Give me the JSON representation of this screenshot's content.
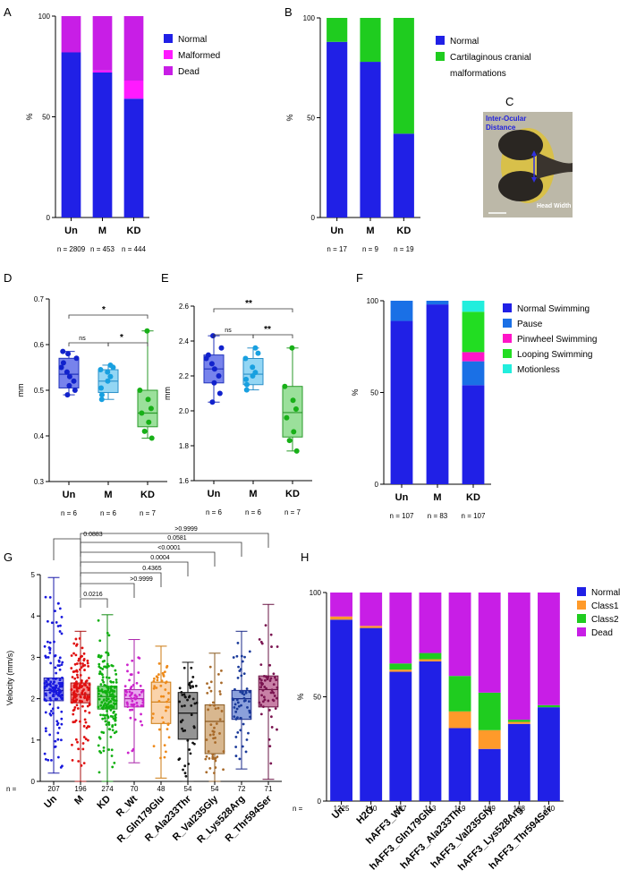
{
  "colors": {
    "blue": "#2020e6",
    "magenta": "#ff1aff",
    "purple": "#c81ee6",
    "green": "#1fcc1f",
    "pause": "#1a70e6",
    "pinwheel": "#ff14c8",
    "looping": "#22dd22",
    "motionless": "#22eedd",
    "orange": "#ff9a2a",
    "boxBlue": "#4a5ae6",
    "boxCyan": "#6fc8f0",
    "boxGreen": "#7ad67a"
  },
  "chart_data": [
    {
      "id": "A",
      "type": "bar",
      "label": "A",
      "ylabel": "%",
      "ylim": [
        0,
        100
      ],
      "yticks": [
        0,
        50,
        100
      ],
      "categories": [
        "Un",
        "M",
        "KD"
      ],
      "n_labels": [
        "n = 2809",
        "n = 453",
        "n = 444"
      ],
      "series": [
        {
          "name": "Normal",
          "values": [
            82,
            72,
            59
          ]
        },
        {
          "name": "Malformed",
          "values": [
            0,
            1,
            9
          ]
        },
        {
          "name": "Dead",
          "values": [
            18,
            27,
            32
          ]
        }
      ],
      "legend": [
        "Normal",
        "Malformed",
        "Dead"
      ]
    },
    {
      "id": "B",
      "type": "bar",
      "label": "B",
      "ylabel": "%",
      "ylim": [
        0,
        100
      ],
      "yticks": [
        0,
        50,
        100
      ],
      "categories": [
        "Un",
        "M",
        "KD"
      ],
      "n_labels": [
        "n = 17",
        "n = 9",
        "n = 19"
      ],
      "series": [
        {
          "name": "Normal",
          "values": [
            88,
            78,
            42
          ]
        },
        {
          "name": "Cartilaginous cranial malformations",
          "values": [
            12,
            22,
            58
          ]
        }
      ],
      "legend": [
        "Normal",
        "Cartilaginous cranial",
        "malformations"
      ]
    },
    {
      "id": "C",
      "type": "image",
      "label": "C",
      "annotations": [
        "Inter-Ocular",
        "Distance",
        "Head Width"
      ]
    },
    {
      "id": "D",
      "type": "box",
      "label": "D",
      "ylabel": "mm",
      "ylim": [
        0.3,
        0.7
      ],
      "yticks": [
        "0.3",
        "0.4",
        "0.5",
        "0.6",
        "0.7"
      ],
      "categories": [
        "Un",
        "M",
        "KD"
      ],
      "n_labels": [
        "n = 6",
        "n = 6",
        "n = 7"
      ],
      "boxes": [
        {
          "min": 0.49,
          "q1": 0.505,
          "median": 0.535,
          "q3": 0.57,
          "max": 0.585,
          "points": [
            0.49,
            0.5,
            0.51,
            0.52,
            0.53,
            0.54,
            0.55,
            0.56,
            0.57,
            0.58,
            0.585
          ]
        },
        {
          "min": 0.48,
          "q1": 0.495,
          "median": 0.52,
          "q3": 0.545,
          "max": 0.555,
          "points": [
            0.48,
            0.49,
            0.505,
            0.52,
            0.53,
            0.54,
            0.545,
            0.55,
            0.555
          ]
        },
        {
          "min": 0.395,
          "q1": 0.42,
          "median": 0.45,
          "q3": 0.5,
          "max": 0.63,
          "points": [
            0.395,
            0.41,
            0.43,
            0.45,
            0.46,
            0.48,
            0.5,
            0.63
          ]
        }
      ],
      "comparisons": [
        {
          "from": 0,
          "to": 2,
          "label": "*"
        },
        {
          "from": 0,
          "to": 1,
          "label": "ns"
        },
        {
          "from": 1,
          "to": 2,
          "label": "*"
        }
      ]
    },
    {
      "id": "E",
      "type": "box",
      "label": "E",
      "ylabel": "mm",
      "ylim": [
        1.6,
        2.6
      ],
      "yticks": [
        "1.6",
        "1.8",
        "2.0",
        "2.2",
        "2.4",
        "2.6"
      ],
      "categories": [
        "Un",
        "M",
        "KD"
      ],
      "n_labels": [
        "n = 6",
        "n = 6",
        "n = 7"
      ],
      "boxes": [
        {
          "min": 2.05,
          "q1": 2.16,
          "median": 2.24,
          "q3": 2.32,
          "max": 2.43,
          "points": [
            2.05,
            2.1,
            2.16,
            2.2,
            2.24,
            2.27,
            2.3,
            2.32,
            2.36,
            2.43
          ]
        },
        {
          "min": 2.12,
          "q1": 2.15,
          "median": 2.21,
          "q3": 2.3,
          "max": 2.36,
          "points": [
            2.12,
            2.15,
            2.18,
            2.2,
            2.22,
            2.25,
            2.3,
            2.33,
            2.36
          ]
        },
        {
          "min": 1.77,
          "q1": 1.85,
          "median": 1.99,
          "q3": 2.14,
          "max": 2.36,
          "points": [
            1.77,
            1.83,
            1.88,
            1.96,
            2.01,
            2.06,
            2.14,
            2.36
          ]
        }
      ],
      "comparisons": [
        {
          "from": 0,
          "to": 2,
          "label": "**"
        },
        {
          "from": 0,
          "to": 1,
          "label": "ns"
        },
        {
          "from": 1,
          "to": 2,
          "label": "**"
        }
      ]
    },
    {
      "id": "F",
      "type": "bar",
      "label": "F",
      "ylabel": "%",
      "ylim": [
        0,
        100
      ],
      "yticks": [
        0,
        50,
        100
      ],
      "categories": [
        "Un",
        "M",
        "KD"
      ],
      "n_labels": [
        "n = 107",
        "n = 83",
        "n = 107"
      ],
      "series": [
        {
          "name": "Normal Swimming",
          "values": [
            89,
            98,
            54
          ]
        },
        {
          "name": "Pause",
          "values": [
            11,
            2,
            13
          ]
        },
        {
          "name": "Pinwheel Swimming",
          "values": [
            0,
            0,
            5
          ]
        },
        {
          "name": "Looping Swimming",
          "values": [
            0,
            0,
            22
          ]
        },
        {
          "name": "Motionless",
          "values": [
            0,
            0,
            6
          ]
        }
      ],
      "legend": [
        "Normal Swimming",
        "Pause",
        "Pinwheel Swimming",
        "Looping Swimming",
        "Motionless"
      ]
    },
    {
      "id": "G",
      "type": "box",
      "label": "G",
      "ylabel": "Velocity (mm/s)",
      "ylim": [
        0,
        5
      ],
      "yticks": [
        "0",
        "1",
        "2",
        "3",
        "4",
        "5"
      ],
      "n_prefix": "n =",
      "categories": [
        "Un",
        "M",
        "KD",
        "R_Wt",
        "R_Gln179Glu",
        "R_Ala233Thr",
        "R_Val235Gly",
        "R_Lys528Arg",
        "R_Thr594Ser"
      ],
      "n_values": [
        "207",
        "196",
        "274",
        "70",
        "48",
        "54",
        "54",
        "72",
        "71"
      ],
      "boxes": [
        {
          "min": 0.2,
          "q1": 1.95,
          "median": 2.2,
          "q3": 2.5,
          "max": 4.93
        },
        {
          "min": 0.0,
          "q1": 1.9,
          "median": 2.1,
          "q3": 2.38,
          "max": 3.63
        },
        {
          "min": 0.0,
          "q1": 1.75,
          "median": 2.05,
          "q3": 2.3,
          "max": 4.03
        },
        {
          "min": 0.45,
          "q1": 1.8,
          "median": 2.0,
          "q3": 2.22,
          "max": 3.43
        },
        {
          "min": 0.08,
          "q1": 1.4,
          "median": 1.92,
          "q3": 2.4,
          "max": 3.27
        },
        {
          "min": 0.0,
          "q1": 1.02,
          "median": 1.65,
          "q3": 2.15,
          "max": 2.88
        },
        {
          "min": 0.0,
          "q1": 0.67,
          "median": 1.45,
          "q3": 1.85,
          "max": 3.1
        },
        {
          "min": 0.3,
          "q1": 1.5,
          "median": 2.0,
          "q3": 2.2,
          "max": 3.63
        },
        {
          "min": 0.05,
          "q1": 1.8,
          "median": 2.22,
          "q3": 2.55,
          "max": 4.28
        }
      ],
      "comparisons": [
        {
          "from": 1,
          "to": 8,
          "label": ">0.9999"
        },
        {
          "from": 1,
          "to": 7,
          "label": "0.0581"
        },
        {
          "from": 1,
          "to": 6,
          "label": "<0.0001"
        },
        {
          "from": 1,
          "to": 5,
          "label": "0.0004"
        },
        {
          "from": 1,
          "to": 4,
          "label": "0.4365"
        },
        {
          "from": 1,
          "to": 3,
          "label": ">0.9999"
        },
        {
          "from": 0,
          "to": 1,
          "label": "0.0883"
        },
        {
          "from": 1,
          "to": 2,
          "label": "0.0216"
        }
      ]
    },
    {
      "id": "H",
      "type": "bar",
      "label": "H",
      "ylabel": "%",
      "ylim": [
        0,
        100
      ],
      "yticks": [
        0,
        50,
        100
      ],
      "n_prefix": "n =",
      "categories": [
        "Un",
        "H2O",
        "hAFF3_Wt",
        "hAFF3_Gln179Glu",
        "hAFF3_Ala233Thr",
        "hAFF3_Val235Gly",
        "hAFF3_Lys528Arg",
        "hAFF3_Thr594Ser"
      ],
      "n_values": [
        "1225",
        "140",
        "137",
        "113",
        "119",
        "109",
        "108",
        "140"
      ],
      "series": [
        {
          "name": "Normal",
          "values": [
            87,
            83,
            62,
            67,
            35,
            25,
            37,
            45
          ]
        },
        {
          "name": "Class1",
          "values": [
            1.5,
            1,
            1,
            1,
            8,
            9,
            1,
            0
          ]
        },
        {
          "name": "Class2",
          "values": [
            0,
            0,
            3,
            3,
            17,
            18,
            1,
            1
          ]
        },
        {
          "name": "Dead",
          "values": [
            11.5,
            16,
            34,
            29,
            40,
            48,
            61,
            54
          ]
        }
      ],
      "legend": [
        "Normal",
        "Class1",
        "Class2",
        "Dead"
      ]
    }
  ]
}
